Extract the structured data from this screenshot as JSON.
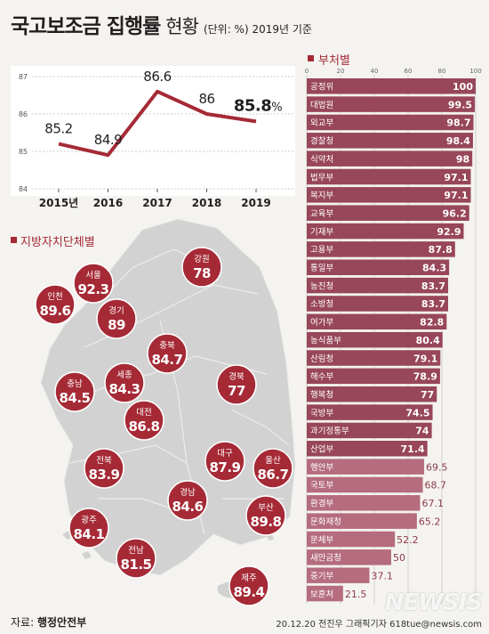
{
  "header": {
    "title": "국고보조금 집행률",
    "subtitle": "현황",
    "unit": "(단위: %) 2019년 기준"
  },
  "footer": {
    "source_label": "자료:",
    "source": "행정안전부",
    "credit": "20.12.20 전진우 그래픽기자 618tue@newsis.com"
  },
  "watermark": "NEWSIS",
  "colors": {
    "accent": "#a52a36",
    "bar": "#98465a",
    "bar_light": "#b56c7e",
    "map": "#d2d2d2",
    "map_dark": "#c4c4c4",
    "background": "#f4f3ef"
  },
  "chart_data": [
    {
      "type": "line",
      "title": "",
      "categories": [
        "2015년",
        "2016",
        "2017",
        "2018",
        "2019"
      ],
      "values": [
        85.2,
        84.9,
        86.6,
        86,
        85.8
      ],
      "value_labels": [
        "85.2",
        "84.9",
        "86.6",
        "86",
        "85.8"
      ],
      "last_unit": "%",
      "ylim": [
        84,
        87
      ],
      "yticks": [
        84,
        85,
        86,
        87
      ],
      "grid": true
    },
    {
      "type": "bar",
      "orientation": "horizontal",
      "title": "부처별",
      "xlim": [
        0,
        100
      ],
      "xticks": [
        0,
        20,
        40,
        60,
        80,
        100
      ],
      "categories": [
        "공정위",
        "대법원",
        "외교부",
        "경찰청",
        "식약처",
        "법무부",
        "복지부",
        "교육부",
        "기재부",
        "고용부",
        "통일부",
        "농진청",
        "소방청",
        "여가부",
        "농식품부",
        "산림청",
        "해수부",
        "행복청",
        "국방부",
        "과기정통부",
        "산업부",
        "행안부",
        "국토부",
        "환경부",
        "문화재청",
        "문체부",
        "새만금청",
        "중기부",
        "보훈처"
      ],
      "values": [
        100,
        99.5,
        98.7,
        98.4,
        98,
        97.1,
        97.1,
        96.2,
        92.9,
        87.8,
        84.3,
        83.7,
        83.7,
        82.8,
        80.4,
        79.1,
        78.9,
        77,
        74.5,
        74,
        71.4,
        69.5,
        68.7,
        67.1,
        65.2,
        52.2,
        50,
        37.1,
        21.5
      ],
      "value_labels": [
        "100",
        "99.5",
        "98.7",
        "98.4",
        "98",
        "97.1",
        "97.1",
        "96.2",
        "92.9",
        "87.8",
        "84.3",
        "83.7",
        "83.7",
        "82.8",
        "80.4",
        "79.1",
        "78.9",
        "77",
        "74.5",
        "74",
        "71.4",
        "69.5",
        "68.7",
        "67.1",
        "65.2",
        "52.2",
        "50",
        "37.1",
        "21.5"
      ]
    },
    {
      "type": "map",
      "title": "지방자치단체별",
      "regions": [
        {
          "name": "서울",
          "value": "92.3"
        },
        {
          "name": "인천",
          "value": "89.6"
        },
        {
          "name": "경기",
          "value": "89"
        },
        {
          "name": "강원",
          "value": "78"
        },
        {
          "name": "충북",
          "value": "84.7"
        },
        {
          "name": "세종",
          "value": "84.3"
        },
        {
          "name": "충남",
          "value": "84.5"
        },
        {
          "name": "대전",
          "value": "86.8"
        },
        {
          "name": "경북",
          "value": "77"
        },
        {
          "name": "대구",
          "value": "87.9"
        },
        {
          "name": "울산",
          "value": "86.7"
        },
        {
          "name": "전북",
          "value": "83.9"
        },
        {
          "name": "경남",
          "value": "84.6"
        },
        {
          "name": "부산",
          "value": "89.8"
        },
        {
          "name": "광주",
          "value": "84.1"
        },
        {
          "name": "전남",
          "value": "81.5"
        },
        {
          "name": "제주",
          "value": "89.4"
        }
      ]
    }
  ]
}
